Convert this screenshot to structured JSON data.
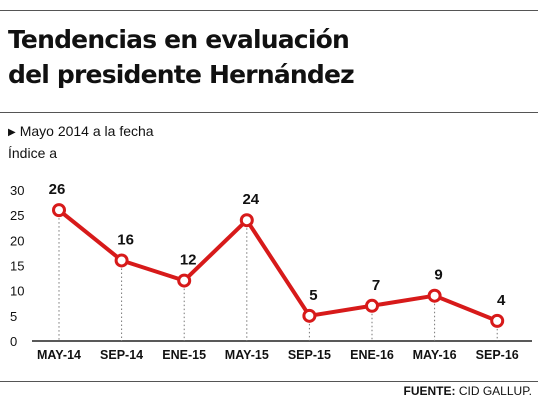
{
  "title_lines": [
    "Tendencias en evaluación",
    "del presidente Hernández"
  ],
  "subtitle": "Mayo 2014 a la fecha",
  "subtitle2": "Índice a",
  "source": {
    "label": "FUENTE:",
    "value": "CID GALLUP."
  },
  "colors": {
    "line": "#d71a1a",
    "text": "#111111",
    "grid": "#777777"
  },
  "chart_data": {
    "type": "line",
    "categories": [
      "MAY-14",
      "SEP-14",
      "ENE-15",
      "MAY-15",
      "SEP-15",
      "ENE-16",
      "MAY-16",
      "SEP-16"
    ],
    "values": [
      26,
      16,
      12,
      24,
      5,
      7,
      9,
      4
    ],
    "data_labels": [
      "26",
      "16",
      "12",
      "24",
      "5",
      "7",
      "9",
      "4"
    ],
    "yticks": [
      0,
      5,
      10,
      15,
      20,
      25,
      30
    ],
    "ylim": [
      0,
      30
    ],
    "title": "Tendencias en evaluación del presidente Hernández",
    "xlabel": "",
    "ylabel": ""
  }
}
